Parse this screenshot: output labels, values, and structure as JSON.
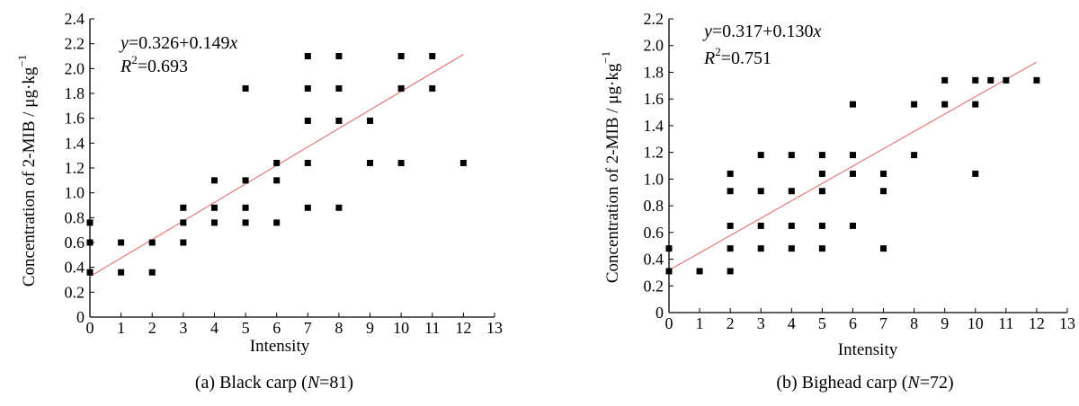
{
  "chart_data": [
    {
      "type": "scatter",
      "xlabel": "Intensity",
      "ylabel_main": "Concentration of 2-MIB / μg·kg",
      "ylabel_sup": "−1",
      "xlim": [
        0,
        13
      ],
      "ylim": [
        0,
        2.4
      ],
      "xticks": [
        "0",
        "1",
        "2",
        "3",
        "4",
        "5",
        "6",
        "7",
        "8",
        "9",
        "10",
        "11",
        "12",
        "13"
      ],
      "yticks": [
        "0",
        "0.2",
        "0.4",
        "0.6",
        "0.8",
        "1.0",
        "1.2",
        "1.4",
        "1.6",
        "1.8",
        "2.0",
        "2.2",
        "2.4"
      ],
      "grid": false,
      "caption": {
        "prefix": "(a) Black carp (",
        "n_symbol": "N",
        "n_value": "=81)"
      },
      "equation": {
        "y": "y",
        "rhs_prefix": "=0.326+0.149",
        "x": "x"
      },
      "r2": {
        "R": "R",
        "sup": "2",
        "value": "=0.693"
      },
      "fit": {
        "intercept": 0.326,
        "slope": 0.149,
        "x_range": [
          0,
          12
        ],
        "color": "#e07a7a"
      },
      "points": [
        {
          "x": 0,
          "y": 0.76
        },
        {
          "x": 0,
          "y": 0.6
        },
        {
          "x": 0,
          "y": 0.36
        },
        {
          "x": 1,
          "y": 0.6
        },
        {
          "x": 1,
          "y": 0.36
        },
        {
          "x": 2,
          "y": 0.6
        },
        {
          "x": 2,
          "y": 0.36
        },
        {
          "x": 3,
          "y": 0.88
        },
        {
          "x": 3,
          "y": 0.76
        },
        {
          "x": 3,
          "y": 0.6
        },
        {
          "x": 4,
          "y": 1.1
        },
        {
          "x": 4,
          "y": 0.88
        },
        {
          "x": 4,
          "y": 0.76
        },
        {
          "x": 5,
          "y": 1.84
        },
        {
          "x": 5,
          "y": 1.1
        },
        {
          "x": 5,
          "y": 0.88
        },
        {
          "x": 5,
          "y": 0.76
        },
        {
          "x": 6,
          "y": 1.24
        },
        {
          "x": 6,
          "y": 1.1
        },
        {
          "x": 6,
          "y": 0.76
        },
        {
          "x": 7,
          "y": 2.1
        },
        {
          "x": 7,
          "y": 1.84
        },
        {
          "x": 7,
          "y": 1.58
        },
        {
          "x": 7,
          "y": 1.24
        },
        {
          "x": 7,
          "y": 0.88
        },
        {
          "x": 8,
          "y": 2.1
        },
        {
          "x": 8,
          "y": 1.84
        },
        {
          "x": 8,
          "y": 1.58
        },
        {
          "x": 8,
          "y": 0.88
        },
        {
          "x": 9,
          "y": 1.58
        },
        {
          "x": 9,
          "y": 1.24
        },
        {
          "x": 10,
          "y": 2.1
        },
        {
          "x": 10,
          "y": 1.84
        },
        {
          "x": 10,
          "y": 1.24
        },
        {
          "x": 11,
          "y": 2.1
        },
        {
          "x": 11,
          "y": 1.84
        },
        {
          "x": 12,
          "y": 1.24
        }
      ]
    },
    {
      "type": "scatter",
      "xlabel": "Intensity",
      "ylabel_main": "Concentration of 2-MIB / μg·kg",
      "ylabel_sup": "−1",
      "xlim": [
        0,
        13
      ],
      "ylim": [
        0,
        2.2
      ],
      "xticks": [
        "0",
        "1",
        "2",
        "3",
        "4",
        "5",
        "6",
        "7",
        "8",
        "9",
        "10",
        "11",
        "12",
        "13"
      ],
      "yticks": [
        "0",
        "0.2",
        "0.4",
        "0.6",
        "0.8",
        "1.0",
        "1.2",
        "1.4",
        "1.6",
        "1.8",
        "2.0",
        "2.2"
      ],
      "grid": false,
      "caption": {
        "prefix": "(b) Bighead carp (",
        "n_symbol": "N",
        "n_value": "=72)"
      },
      "equation": {
        "y": "y",
        "rhs_prefix": "=0.317+0.130",
        "x": "x"
      },
      "r2": {
        "R": "R",
        "sup": "2",
        "value": "=0.751"
      },
      "fit": {
        "intercept": 0.317,
        "slope": 0.13,
        "x_range": [
          0,
          12
        ],
        "color": "#e07a7a"
      },
      "points": [
        {
          "x": 0,
          "y": 0.48
        },
        {
          "x": 0,
          "y": 0.31
        },
        {
          "x": 1,
          "y": 0.31
        },
        {
          "x": 2,
          "y": 1.04
        },
        {
          "x": 2,
          "y": 0.91
        },
        {
          "x": 2,
          "y": 0.65
        },
        {
          "x": 2,
          "y": 0.48
        },
        {
          "x": 2,
          "y": 0.31
        },
        {
          "x": 3,
          "y": 1.18
        },
        {
          "x": 3,
          "y": 0.91
        },
        {
          "x": 3,
          "y": 0.65
        },
        {
          "x": 3,
          "y": 0.48
        },
        {
          "x": 4,
          "y": 1.18
        },
        {
          "x": 4,
          "y": 0.91
        },
        {
          "x": 4,
          "y": 0.65
        },
        {
          "x": 4,
          "y": 0.48
        },
        {
          "x": 5,
          "y": 1.18
        },
        {
          "x": 5,
          "y": 1.04
        },
        {
          "x": 5,
          "y": 0.91
        },
        {
          "x": 5,
          "y": 0.65
        },
        {
          "x": 5,
          "y": 0.48
        },
        {
          "x": 6,
          "y": 1.56
        },
        {
          "x": 6,
          "y": 1.18
        },
        {
          "x": 6,
          "y": 1.04
        },
        {
          "x": 6,
          "y": 0.65
        },
        {
          "x": 7,
          "y": 1.04
        },
        {
          "x": 7,
          "y": 0.91
        },
        {
          "x": 7,
          "y": 0.48
        },
        {
          "x": 8,
          "y": 1.56
        },
        {
          "x": 8,
          "y": 1.18
        },
        {
          "x": 9,
          "y": 1.74
        },
        {
          "x": 9,
          "y": 1.56
        },
        {
          "x": 10,
          "y": 1.74
        },
        {
          "x": 10,
          "y": 1.56
        },
        {
          "x": 10,
          "y": 1.04
        },
        {
          "x": 10.5,
          "y": 1.74
        },
        {
          "x": 11,
          "y": 1.74
        },
        {
          "x": 12,
          "y": 1.74
        }
      ]
    }
  ]
}
